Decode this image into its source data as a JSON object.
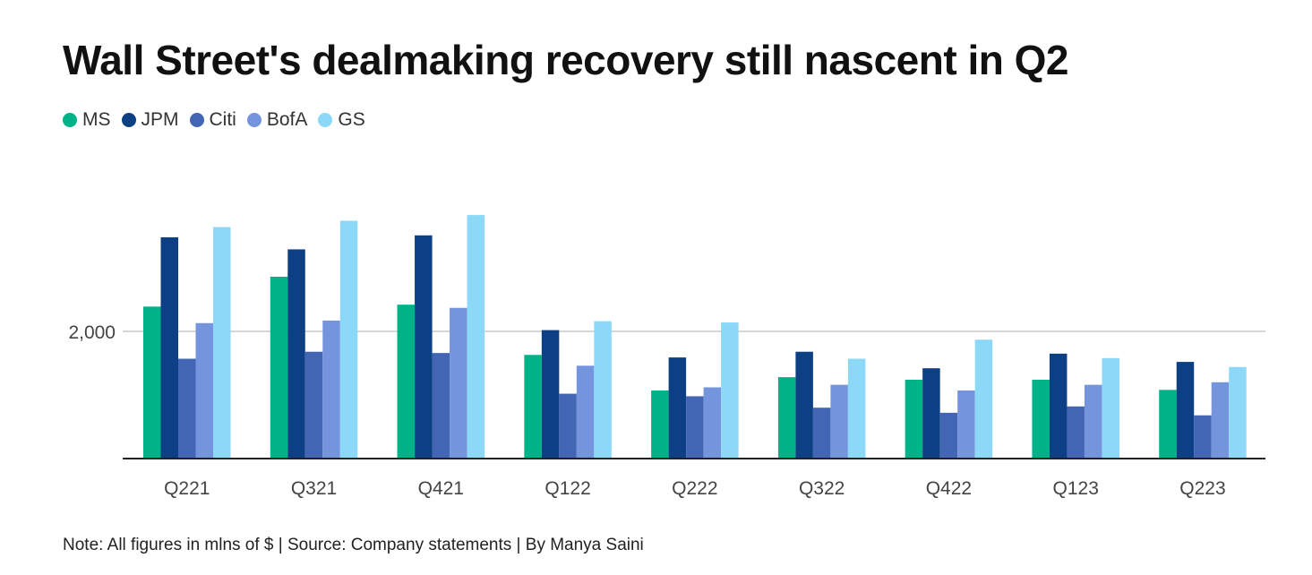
{
  "chart_data": {
    "type": "bar",
    "title": "Wall Street's dealmaking recovery still nascent in Q2",
    "categories": [
      "Q221",
      "Q321",
      "Q421",
      "Q122",
      "Q222",
      "Q322",
      "Q422",
      "Q123",
      "Q223"
    ],
    "series": [
      {
        "name": "MS",
        "color": "#00b288",
        "values": [
          2390,
          2860,
          2420,
          1630,
          1070,
          1280,
          1240,
          1240,
          1080
        ]
      },
      {
        "name": "JPM",
        "color": "#0d3f85",
        "values": [
          3480,
          3290,
          3510,
          2020,
          1590,
          1680,
          1420,
          1650,
          1520
        ]
      },
      {
        "name": "Citi",
        "color": "#4266b3",
        "values": [
          1570,
          1680,
          1660,
          1020,
          980,
          800,
          720,
          820,
          680
        ]
      },
      {
        "name": "BofA",
        "color": "#7494de",
        "values": [
          2130,
          2170,
          2370,
          1460,
          1120,
          1160,
          1070,
          1160,
          1200
        ]
      },
      {
        "name": "GS",
        "color": "#8cd9f7",
        "values": [
          3640,
          3740,
          3830,
          2160,
          2140,
          1570,
          1870,
          1580,
          1440
        ]
      }
    ],
    "yticks": [
      {
        "value": 2000,
        "label": "2,000"
      }
    ],
    "ylim": [
      0,
      4000
    ],
    "grid": true,
    "legend_position": "top-left",
    "note": "Note: All figures in mlns of $ | Source: Company statements | By Manya Saini"
  }
}
